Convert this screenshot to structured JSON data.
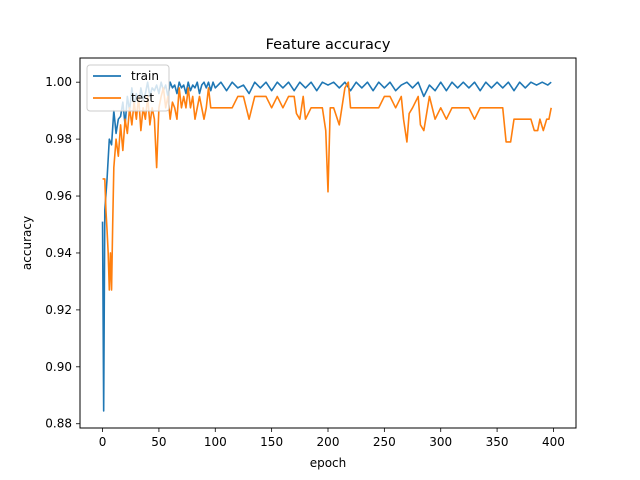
{
  "chart_data": {
    "type": "line",
    "title": "Feature accuracy",
    "xlabel": "epoch",
    "ylabel": "accuracy",
    "xlim": [
      -20,
      420
    ],
    "ylim": [
      0.8785,
      1.0085
    ],
    "xticks": [
      0,
      50,
      100,
      150,
      200,
      250,
      300,
      350,
      400
    ],
    "yticks": [
      0.88,
      0.9,
      0.92,
      0.94,
      0.96,
      0.98,
      1.0
    ],
    "legend": "top-left",
    "grid": false,
    "series": [
      {
        "name": "train",
        "color": "#1f77b4",
        "points": [
          [
            0,
            0.951
          ],
          [
            1,
            0.8845
          ],
          [
            2,
            0.955
          ],
          [
            4,
            0.966
          ],
          [
            6,
            0.98
          ],
          [
            8,
            0.978
          ],
          [
            10,
            0.99
          ],
          [
            12,
            0.982
          ],
          [
            14,
            0.987
          ],
          [
            16,
            0.988
          ],
          [
            18,
            0.993
          ],
          [
            20,
            0.985
          ],
          [
            22,
            0.995
          ],
          [
            24,
            0.99
          ],
          [
            26,
            0.998
          ],
          [
            28,
            0.992
          ],
          [
            30,
            0.996
          ],
          [
            32,
            0.992
          ],
          [
            34,
            0.998
          ],
          [
            36,
            0.994
          ],
          [
            38,
            0.996
          ],
          [
            40,
            1.0
          ],
          [
            42,
            0.995
          ],
          [
            44,
            0.998
          ],
          [
            46,
            0.997
          ],
          [
            48,
            0.999
          ],
          [
            50,
            0.996
          ],
          [
            52,
            1.0
          ],
          [
            54,
            0.997
          ],
          [
            56,
            0.999
          ],
          [
            58,
            0.995
          ],
          [
            60,
            1.0
          ],
          [
            62,
            0.998
          ],
          [
            64,
            0.999
          ],
          [
            66,
            0.996
          ],
          [
            68,
            1.0
          ],
          [
            70,
            0.998
          ],
          [
            72,
            0.999
          ],
          [
            74,
            0.996
          ],
          [
            76,
            1.0
          ],
          [
            78,
            0.997
          ],
          [
            80,
            0.999
          ],
          [
            82,
            0.998
          ],
          [
            84,
            1.0
          ],
          [
            86,
            0.996
          ],
          [
            88,
            0.999
          ],
          [
            90,
            1.0
          ],
          [
            92,
            0.998
          ],
          [
            94,
            1.0
          ],
          [
            96,
            0.997
          ],
          [
            98,
            1.0
          ],
          [
            100,
            0.998
          ],
          [
            105,
            1.0
          ],
          [
            110,
            0.997
          ],
          [
            115,
            1.0
          ],
          [
            120,
            0.998
          ],
          [
            125,
            0.999
          ],
          [
            130,
            0.996
          ],
          [
            135,
            1.0
          ],
          [
            140,
            0.998
          ],
          [
            145,
            1.0
          ],
          [
            150,
            0.997
          ],
          [
            155,
            1.0
          ],
          [
            160,
            0.998
          ],
          [
            165,
            1.0
          ],
          [
            170,
            0.997
          ],
          [
            175,
            1.0
          ],
          [
            180,
            0.998
          ],
          [
            185,
            1.0
          ],
          [
            190,
            0.997
          ],
          [
            195,
            1.0
          ],
          [
            200,
            0.999
          ],
          [
            205,
            1.0
          ],
          [
            210,
            0.998
          ],
          [
            215,
            1.0
          ],
          [
            220,
            0.997
          ],
          [
            225,
            1.0
          ],
          [
            230,
            0.998
          ],
          [
            235,
            1.0
          ],
          [
            240,
            0.997
          ],
          [
            245,
            1.0
          ],
          [
            250,
            0.998
          ],
          [
            255,
            1.0
          ],
          [
            260,
            0.997
          ],
          [
            265,
            0.999
          ],
          [
            270,
            1.0
          ],
          [
            275,
            0.998
          ],
          [
            280,
            1.0
          ],
          [
            285,
            0.995
          ],
          [
            290,
            0.999
          ],
          [
            295,
            0.997
          ],
          [
            300,
            1.0
          ],
          [
            305,
            0.997
          ],
          [
            310,
            1.0
          ],
          [
            315,
            0.998
          ],
          [
            320,
            1.0
          ],
          [
            325,
            0.998
          ],
          [
            330,
            1.0
          ],
          [
            335,
            0.997
          ],
          [
            340,
            1.0
          ],
          [
            345,
            0.998
          ],
          [
            350,
            1.0
          ],
          [
            355,
            0.998
          ],
          [
            360,
            1.0
          ],
          [
            365,
            0.997
          ],
          [
            370,
            1.0
          ],
          [
            375,
            0.998
          ],
          [
            380,
            1.0
          ],
          [
            385,
            0.999
          ],
          [
            390,
            1.0
          ],
          [
            395,
            0.999
          ],
          [
            398,
            1.0
          ]
        ]
      },
      {
        "name": "test",
        "color": "#ff7f0e",
        "points": [
          [
            0,
            0.966
          ],
          [
            1,
            0.966
          ],
          [
            2,
            0.966
          ],
          [
            3,
            0.955
          ],
          [
            4,
            0.948
          ],
          [
            5,
            0.94
          ],
          [
            6,
            0.927
          ],
          [
            7,
            0.94
          ],
          [
            8,
            0.927
          ],
          [
            9,
            0.95
          ],
          [
            10,
            0.97
          ],
          [
            12,
            0.98
          ],
          [
            14,
            0.974
          ],
          [
            16,
            0.985
          ],
          [
            18,
            0.976
          ],
          [
            20,
            0.987
          ],
          [
            22,
            0.982
          ],
          [
            24,
            0.991
          ],
          [
            26,
            0.985
          ],
          [
            28,
            0.993
          ],
          [
            30,
            0.987
          ],
          [
            32,
            0.995
          ],
          [
            34,
            0.983
          ],
          [
            36,
            0.991
          ],
          [
            38,
            0.987
          ],
          [
            40,
            0.995
          ],
          [
            42,
            0.985
          ],
          [
            44,
            0.991
          ],
          [
            46,
            0.987
          ],
          [
            48,
            0.97
          ],
          [
            50,
            0.991
          ],
          [
            52,
            0.995
          ],
          [
            54,
            0.998
          ],
          [
            56,
            0.991
          ],
          [
            58,
            0.995
          ],
          [
            60,
            0.987
          ],
          [
            62,
            0.993
          ],
          [
            64,
            0.991
          ],
          [
            66,
            0.987
          ],
          [
            68,
            0.998
          ],
          [
            70,
            0.991
          ],
          [
            72,
            0.995
          ],
          [
            74,
            0.991
          ],
          [
            76,
            0.998
          ],
          [
            78,
            0.991
          ],
          [
            80,
            0.995
          ],
          [
            82,
            0.987
          ],
          [
            84,
            0.991
          ],
          [
            86,
            0.995
          ],
          [
            88,
            0.991
          ],
          [
            90,
            0.987
          ],
          [
            92,
            0.991
          ],
          [
            94,
            0.998
          ],
          [
            96,
            0.991
          ],
          [
            98,
            0.991
          ],
          [
            100,
            0.991
          ],
          [
            105,
            0.991
          ],
          [
            110,
            0.991
          ],
          [
            115,
            0.991
          ],
          [
            120,
            0.995
          ],
          [
            125,
            0.995
          ],
          [
            130,
            0.987
          ],
          [
            135,
            0.995
          ],
          [
            140,
            0.995
          ],
          [
            145,
            0.995
          ],
          [
            150,
            0.991
          ],
          [
            155,
            0.995
          ],
          [
            160,
            0.991
          ],
          [
            165,
            0.995
          ],
          [
            170,
            0.995
          ],
          [
            172,
            0.989
          ],
          [
            175,
            0.987
          ],
          [
            178,
            0.995
          ],
          [
            180,
            0.987
          ],
          [
            185,
            0.991
          ],
          [
            190,
            0.991
          ],
          [
            195,
            0.991
          ],
          [
            198,
            0.983
          ],
          [
            200,
            0.9615
          ],
          [
            202,
            0.991
          ],
          [
            205,
            0.991
          ],
          [
            210,
            0.985
          ],
          [
            215,
            0.998
          ],
          [
            218,
            1.0
          ],
          [
            220,
            0.991
          ],
          [
            225,
            0.991
          ],
          [
            230,
            0.991
          ],
          [
            235,
            0.991
          ],
          [
            240,
            0.991
          ],
          [
            245,
            0.991
          ],
          [
            250,
            0.995
          ],
          [
            255,
            0.995
          ],
          [
            260,
            0.991
          ],
          [
            265,
            0.995
          ],
          [
            267,
            0.987
          ],
          [
            270,
            0.979
          ],
          [
            272,
            0.989
          ],
          [
            275,
            0.991
          ],
          [
            280,
            0.995
          ],
          [
            282,
            0.985
          ],
          [
            285,
            0.983
          ],
          [
            290,
            0.995
          ],
          [
            295,
            0.987
          ],
          [
            300,
            0.991
          ],
          [
            305,
            0.987
          ],
          [
            310,
            0.991
          ],
          [
            315,
            0.991
          ],
          [
            320,
            0.991
          ],
          [
            325,
            0.991
          ],
          [
            330,
            0.987
          ],
          [
            335,
            0.991
          ],
          [
            340,
            0.991
          ],
          [
            345,
            0.991
          ],
          [
            350,
            0.991
          ],
          [
            355,
            0.991
          ],
          [
            358,
            0.979
          ],
          [
            362,
            0.979
          ],
          [
            365,
            0.987
          ],
          [
            370,
            0.987
          ],
          [
            375,
            0.987
          ],
          [
            380,
            0.987
          ],
          [
            383,
            0.983
          ],
          [
            386,
            0.983
          ],
          [
            388,
            0.987
          ],
          [
            391,
            0.983
          ],
          [
            394,
            0.987
          ],
          [
            396,
            0.987
          ],
          [
            398,
            0.991
          ]
        ]
      }
    ]
  }
}
